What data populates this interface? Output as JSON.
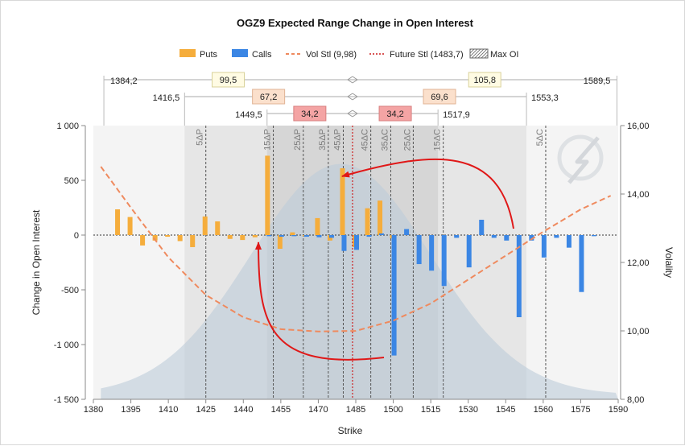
{
  "chart_data": {
    "type": "bar",
    "title": "OGZ9 Expected Range Change in Open Interest",
    "xlabel": "Strike",
    "ylabel": "Change in Open Interest",
    "y2label": "Volality",
    "xlim": [
      1380,
      1590
    ],
    "ylim": [
      -1500,
      1000
    ],
    "y2lim": [
      8,
      16
    ],
    "xticks": [
      1380,
      1395,
      1410,
      1425,
      1440,
      1455,
      1470,
      1485,
      1500,
      1515,
      1530,
      1545,
      1560,
      1575,
      1590
    ],
    "yticks": [
      -1500,
      -1000,
      -500,
      0,
      500,
      1000
    ],
    "ytick_labels": [
      "-1 500",
      "-1 000",
      "-500",
      "0",
      "500",
      "1 000"
    ],
    "y2ticks": [
      8,
      10,
      12,
      14,
      16
    ],
    "y2tick_labels": [
      "8,00",
      "10,00",
      "12,00",
      "14,00",
      "16,00"
    ],
    "legend": {
      "placement": "top",
      "items": [
        {
          "label": "Puts",
          "color": "#f5ad3c",
          "kind": "box"
        },
        {
          "label": "Calls",
          "color": "#3b86e4",
          "kind": "box"
        },
        {
          "label": "Vol Stl (9,98)",
          "color": "#ef8a5e",
          "kind": "dash"
        },
        {
          "label": "Future Stl (1483,7)",
          "color": "#cc1f1f",
          "kind": "dot"
        },
        {
          "label": "Max OI",
          "color": "#888888",
          "kind": "hatch"
        }
      ]
    },
    "puts": {
      "name": "Puts",
      "color": "#f5ad3c",
      "x": [
        1390,
        1395,
        1400,
        1405,
        1410,
        1415,
        1420,
        1425,
        1430,
        1435,
        1440,
        1445,
        1450,
        1455,
        1460,
        1465,
        1470,
        1475,
        1480,
        1485,
        1490,
        1495,
        1500
      ],
      "values": [
        235,
        165,
        -95,
        -50,
        -15,
        -55,
        -110,
        170,
        125,
        -35,
        -45,
        -20,
        725,
        -125,
        25,
        -10,
        155,
        -50,
        610,
        -110,
        245,
        315,
        -30
      ]
    },
    "calls": {
      "name": "Calls",
      "color": "#3b86e4",
      "x": [
        1450,
        1455,
        1460,
        1465,
        1470,
        1475,
        1480,
        1485,
        1490,
        1495,
        1500,
        1505,
        1510,
        1515,
        1520,
        1525,
        1530,
        1535,
        1540,
        1545,
        1550,
        1555,
        1560,
        1565,
        1570,
        1575,
        1580
      ],
      "values": [
        -10,
        -15,
        -10,
        -15,
        -20,
        -25,
        -145,
        -135,
        -15,
        15,
        -1100,
        55,
        -265,
        -325,
        -465,
        -25,
        -295,
        140,
        -25,
        -50,
        -750,
        -50,
        -205,
        -25,
        -115,
        -520,
        -10
      ]
    },
    "vol_curve": {
      "name": "Vol Stl (9,98)",
      "color": "#ef8a5e",
      "x": [
        1383,
        1395,
        1410,
        1425,
        1440,
        1455,
        1470,
        1485,
        1500,
        1515,
        1530,
        1545,
        1560,
        1575,
        1587
      ],
      "values": [
        14.8,
        13.6,
        12.15,
        11.05,
        10.4,
        10.05,
        9.98,
        10.0,
        10.3,
        10.8,
        11.5,
        12.2,
        12.9,
        13.55,
        13.95
      ]
    },
    "future_settle": 1483.7,
    "distribution": {
      "mean": 1479,
      "peak_oi": 650,
      "sd": 36
    },
    "delta_lines": [
      {
        "label": "5ΔP",
        "x": 1425
      },
      {
        "label": "15ΔP",
        "x": 1452
      },
      {
        "label": "25ΔP",
        "x": 1464
      },
      {
        "label": "35ΔP",
        "x": 1474
      },
      {
        "label": "45ΔP",
        "x": 1480
      },
      {
        "label": "45ΔC",
        "x": 1491
      },
      {
        "label": "35ΔC",
        "x": 1499
      },
      {
        "label": "25ΔC",
        "x": 1508
      },
      {
        "label": "15ΔC",
        "x": 1520
      },
      {
        "label": "5ΔC",
        "x": 1561
      }
    ],
    "ranges": [
      {
        "value": "99,5",
        "left": 1384.2,
        "right": 1589.5,
        "left_label": "1384,2",
        "right_label": "1589,5",
        "fill": "#fffbe3",
        "stroke": "#d8d29a"
      },
      {
        "value": "105,8",
        "left": 1384.2,
        "right": 1589.5,
        "left_label": "",
        "right_label": "",
        "fill": "#fffbe3",
        "stroke": "#d8d29a"
      },
      {
        "value": "67,2",
        "left": 1416.5,
        "right": 1553.3,
        "left_label": "1416,5",
        "right_label": "1553,3",
        "fill": "#fbe0cc",
        "stroke": "#e1b394"
      },
      {
        "value": "69,6",
        "left": 1416.5,
        "right": 1553.3,
        "left_label": "",
        "right_label": "",
        "fill": "#fbe0cc",
        "stroke": "#e1b394"
      },
      {
        "value": "34,2",
        "left": 1449.5,
        "right": 1517.9,
        "left_label": "1449,5",
        "right_label": "1517,9",
        "fill": "#f4a4a4",
        "stroke": "#d77f7f"
      },
      {
        "value": "34,2",
        "left": 1449.5,
        "right": 1517.9,
        "left_label": "",
        "right_label": "",
        "fill": "#f4a4a4",
        "stroke": "#d77f7f"
      }
    ]
  }
}
